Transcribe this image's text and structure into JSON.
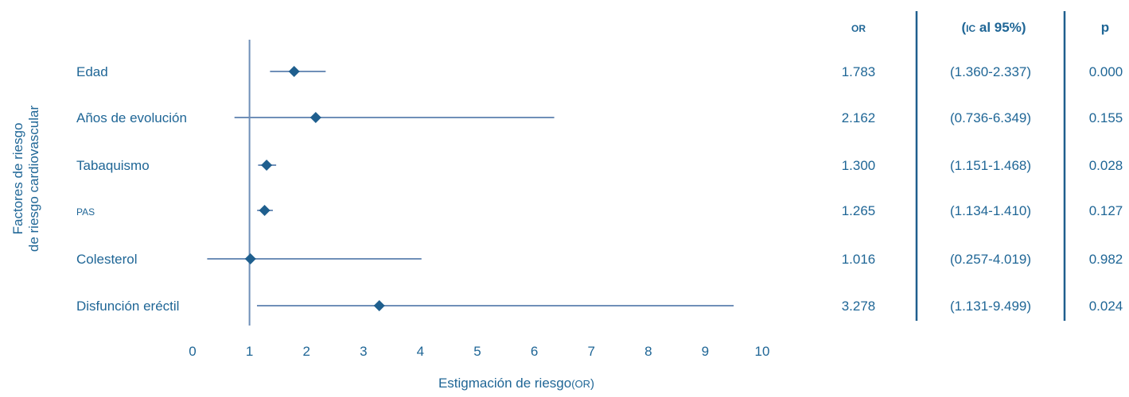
{
  "chart_data": {
    "type": "forest",
    "ylabel_lines": [
      "Factores de riesgo",
      "de riesgo cardiovascular"
    ],
    "xlabel_main": "Estigmación de riesgo",
    "xlabel_unit": "OR",
    "xlim": [
      0,
      10
    ],
    "x_ticks": [
      0,
      1,
      2,
      3,
      4,
      5,
      6,
      7,
      8,
      9,
      10
    ],
    "reference_line": 1,
    "column_headers": {
      "or": "OR",
      "ci_prefix": "(",
      "ci_small": "IC",
      "ci_rest": " al 95%)",
      "p": "p"
    },
    "rows": [
      {
        "label": "Edad",
        "or": 1.783,
        "lo": 1.36,
        "hi": 2.337,
        "or_text": "1.783",
        "ci_text": "(1.360-2.337)",
        "p_text": "0.000"
      },
      {
        "label": "Años de evolución",
        "or": 2.162,
        "lo": 0.736,
        "hi": 6.349,
        "or_text": "2.162",
        "ci_text": "(0.736-6.349)",
        "p_text": "0.155"
      },
      {
        "label": "Tabaquismo",
        "or": 1.3,
        "lo": 1.151,
        "hi": 1.468,
        "or_text": "1.300",
        "ci_text": "(1.151-1.468)",
        "p_text": "0.028"
      },
      {
        "label": "PAS",
        "or": 1.265,
        "lo": 1.134,
        "hi": 1.41,
        "or_text": "1.265",
        "ci_text": "(1.134-1.410)",
        "p_text": "0.127",
        "small_caps": true
      },
      {
        "label": "Colesterol",
        "or": 1.016,
        "lo": 0.257,
        "hi": 4.019,
        "or_text": "1.016",
        "ci_text": "(0.257-4.019)",
        "p_text": "0.982"
      },
      {
        "label": "Disfunción eréctil",
        "or": 3.278,
        "lo": 1.131,
        "hi": 9.499,
        "or_text": "3.278",
        "ci_text": "(1.131-9.499)",
        "p_text": "0.024"
      }
    ],
    "colors": {
      "text": "#1f6696",
      "line": "#6f8fb8",
      "marker": "#1f5f8e",
      "divider": "#1f5f8e"
    }
  }
}
